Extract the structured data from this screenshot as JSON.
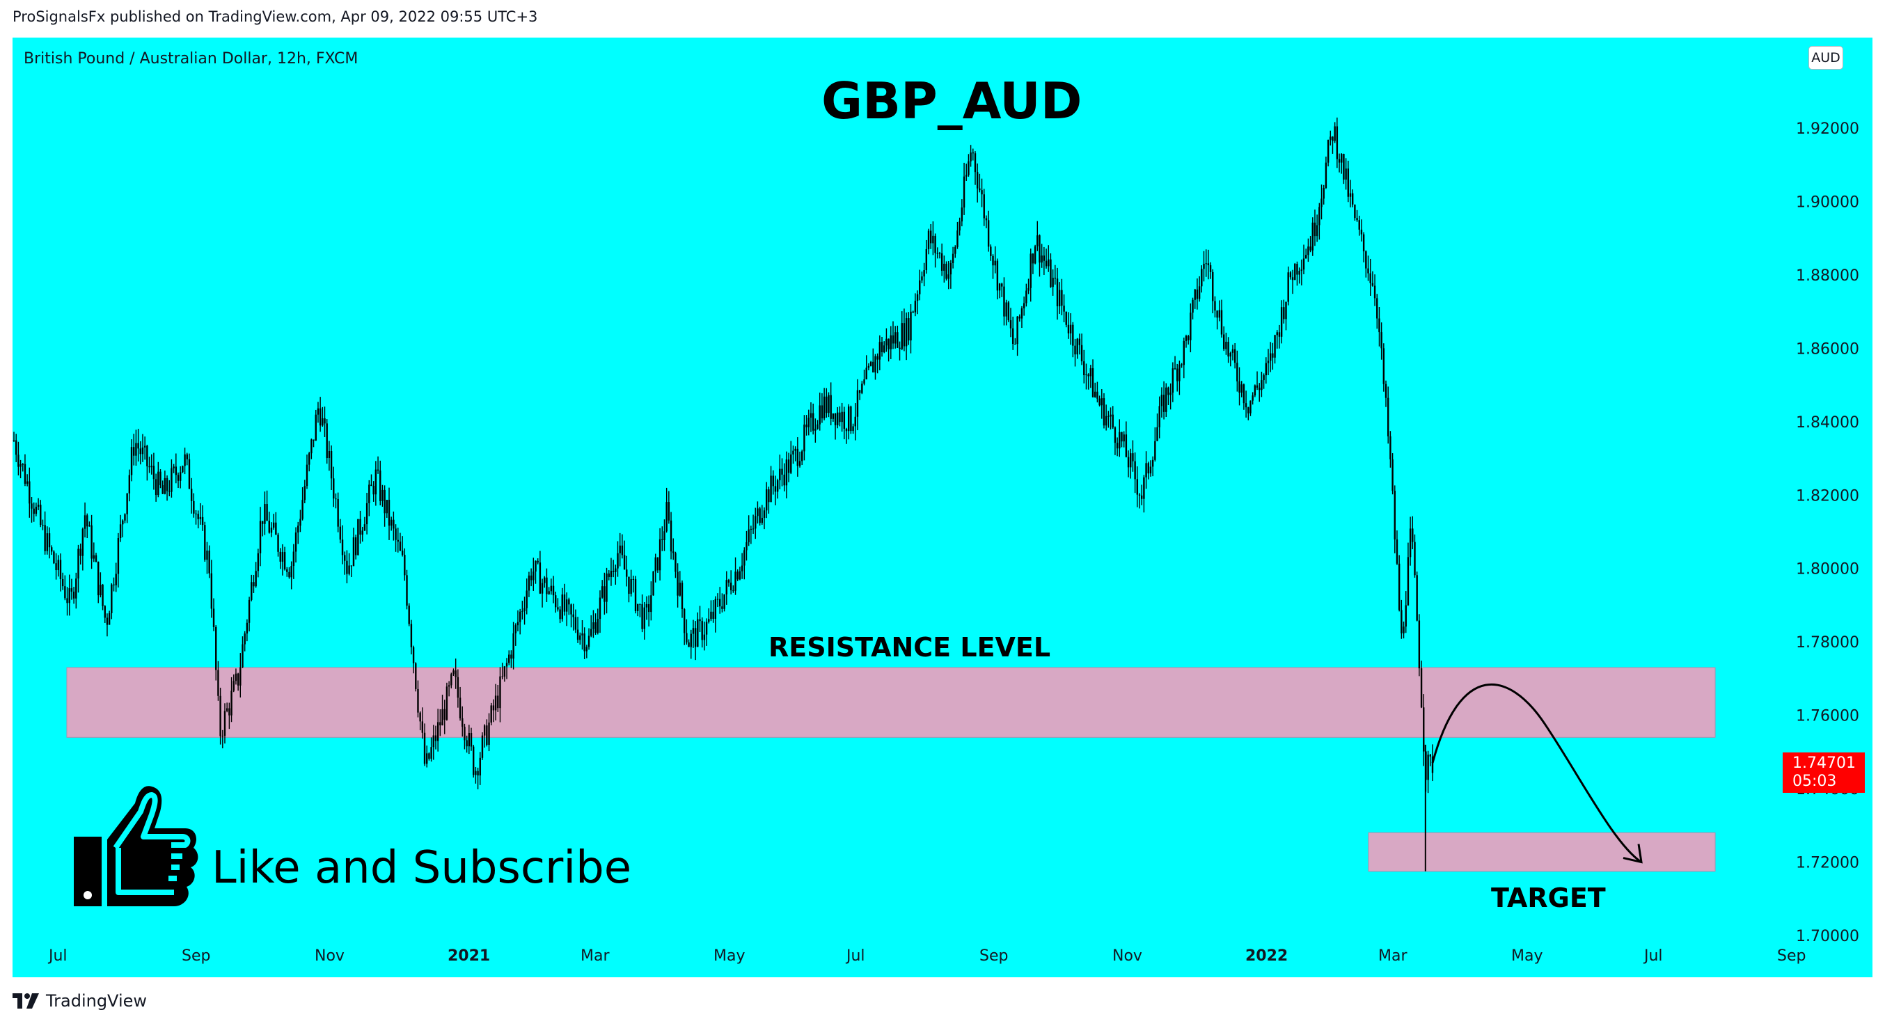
{
  "header": {
    "publish_info": "ProSignalsFx published on TradingView.com, Apr 09, 2022 09:55 UTC+3"
  },
  "symbol": {
    "description": "British Pound / Australian Dollar, 12h, FXCM",
    "currency": "AUD"
  },
  "annotations": {
    "title": "GBP_AUD",
    "resistance_label": "RESISTANCE LEVEL",
    "target_label": "TARGET",
    "subscribe_text": "Like and Subscribe"
  },
  "price_tag": {
    "price": "1.74701",
    "countdown": "05:03",
    "color": "#FF0000"
  },
  "footer": {
    "brand": "TradingView"
  },
  "colors": {
    "background": "#00FFFF",
    "zone": "#D8A8C4",
    "candles": "#000000"
  },
  "chart_data": {
    "type": "candlestick",
    "title": "GBP_AUD",
    "timeframe": "12h",
    "y_axis": {
      "ticks": [
        "1.92000",
        "1.90000",
        "1.88000",
        "1.86000",
        "1.84000",
        "1.82000",
        "1.80000",
        "1.78000",
        "1.76000",
        "1.74000",
        "1.72000",
        "1.70000"
      ],
      "range": [
        1.7,
        1.935
      ]
    },
    "x_axis": {
      "ticks": [
        {
          "label": "Jul",
          "bold": false
        },
        {
          "label": "Sep",
          "bold": false
        },
        {
          "label": "Nov",
          "bold": false
        },
        {
          "label": "2021",
          "bold": true
        },
        {
          "label": "Mar",
          "bold": false
        },
        {
          "label": "May",
          "bold": false
        },
        {
          "label": "Jul",
          "bold": false
        },
        {
          "label": "Sep",
          "bold": false
        },
        {
          "label": "Nov",
          "bold": false
        },
        {
          "label": "2022",
          "bold": true
        },
        {
          "label": "Mar",
          "bold": false
        },
        {
          "label": "May",
          "bold": false
        },
        {
          "label": "Jul",
          "bold": false
        },
        {
          "label": "Sep",
          "bold": false
        }
      ]
    },
    "price_path": [
      {
        "t": 0,
        "p": 1.835
      },
      {
        "t": 0.02,
        "p": 1.81
      },
      {
        "t": 0.04,
        "p": 1.79
      },
      {
        "t": 0.05,
        "p": 1.815
      },
      {
        "t": 0.065,
        "p": 1.785
      },
      {
        "t": 0.085,
        "p": 1.835
      },
      {
        "t": 0.105,
        "p": 1.82
      },
      {
        "t": 0.12,
        "p": 1.83
      },
      {
        "t": 0.138,
        "p": 1.8
      },
      {
        "t": 0.145,
        "p": 1.755
      },
      {
        "t": 0.158,
        "p": 1.77
      },
      {
        "t": 0.175,
        "p": 1.815
      },
      {
        "t": 0.195,
        "p": 1.8
      },
      {
        "t": 0.215,
        "p": 1.845
      },
      {
        "t": 0.235,
        "p": 1.8
      },
      {
        "t": 0.255,
        "p": 1.825
      },
      {
        "t": 0.275,
        "p": 1.8
      },
      {
        "t": 0.29,
        "p": 1.745
      },
      {
        "t": 0.31,
        "p": 1.77
      },
      {
        "t": 0.325,
        "p": 1.745
      },
      {
        "t": 0.345,
        "p": 1.77
      },
      {
        "t": 0.365,
        "p": 1.8
      },
      {
        "t": 0.385,
        "p": 1.79
      },
      {
        "t": 0.405,
        "p": 1.78
      },
      {
        "t": 0.425,
        "p": 1.805
      },
      {
        "t": 0.445,
        "p": 1.785
      },
      {
        "t": 0.46,
        "p": 1.815
      },
      {
        "t": 0.475,
        "p": 1.78
      },
      {
        "t": 0.49,
        "p": 1.785
      },
      {
        "t": 0.51,
        "p": 1.8
      },
      {
        "t": 0.53,
        "p": 1.82
      },
      {
        "t": 0.55,
        "p": 1.83
      },
      {
        "t": 0.57,
        "p": 1.845
      },
      {
        "t": 0.59,
        "p": 1.84
      },
      {
        "t": 0.61,
        "p": 1.86
      },
      {
        "t": 0.63,
        "p": 1.865
      },
      {
        "t": 0.645,
        "p": 1.89
      },
      {
        "t": 0.66,
        "p": 1.88
      },
      {
        "t": 0.675,
        "p": 1.915
      },
      {
        "t": 0.69,
        "p": 1.885
      },
      {
        "t": 0.705,
        "p": 1.86
      },
      {
        "t": 0.72,
        "p": 1.89
      },
      {
        "t": 0.735,
        "p": 1.875
      },
      {
        "t": 0.75,
        "p": 1.86
      },
      {
        "t": 0.765,
        "p": 1.845
      },
      {
        "t": 0.78,
        "p": 1.835
      },
      {
        "t": 0.795,
        "p": 1.82
      },
      {
        "t": 0.81,
        "p": 1.845
      },
      {
        "t": 0.825,
        "p": 1.86
      },
      {
        "t": 0.84,
        "p": 1.885
      },
      {
        "t": 0.855,
        "p": 1.86
      },
      {
        "t": 0.87,
        "p": 1.845
      },
      {
        "t": 0.885,
        "p": 1.855
      },
      {
        "t": 0.9,
        "p": 1.88
      },
      {
        "t": 0.915,
        "p": 1.89
      },
      {
        "t": 0.93,
        "p": 1.92
      },
      {
        "t": 0.945,
        "p": 1.895
      },
      {
        "t": 0.96,
        "p": 1.875
      },
      {
        "t": 0.97,
        "p": 1.83
      },
      {
        "t": 0.978,
        "p": 1.78
      },
      {
        "t": 0.985,
        "p": 1.81
      },
      {
        "t": 0.99,
        "p": 1.78
      },
      {
        "t": 0.995,
        "p": 1.745
      },
      {
        "t": 1.0,
        "p": 1.747
      }
    ],
    "zones": [
      {
        "name": "resistance",
        "from": 1.754,
        "to": 1.773
      },
      {
        "name": "target",
        "from": 1.7175,
        "to": 1.728
      }
    ],
    "last_price": 1.74701,
    "projection": "rise to ~1.765 then decline to target ~1.72"
  }
}
